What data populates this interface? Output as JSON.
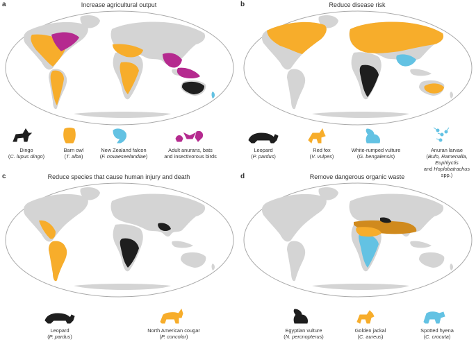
{
  "colors": {
    "land": "#d4d4d4",
    "ocean": "#ffffff",
    "outline": "#a9a9a9",
    "orange": "#f7ad2b",
    "magenta": "#b52a8f",
    "black": "#1e1e1e",
    "blue": "#63c2e3",
    "dark_orange": "#d08a1d"
  },
  "panels": [
    {
      "label": "a",
      "title": "Increase agricultural output",
      "legend": [
        {
          "name": "Dingo",
          "sci_pre": "(",
          "sci": "C. lupus dingo",
          "sci_post": ")",
          "color": "#1e1e1e",
          "icon": "dingo-icon"
        },
        {
          "name": "Barn owl",
          "sci_pre": "(",
          "sci": "T. alba",
          "sci_post": ")",
          "color": "#f7ad2b",
          "icon": "barn-owl-icon"
        },
        {
          "name": "New Zealand falcon",
          "sci_pre": "(",
          "sci": "F. novaeseelandiae",
          "sci_post": ")",
          "color": "#63c2e3",
          "icon": "falcon-icon"
        },
        {
          "name": "Adult anurans, bats",
          "sci_pre": "and insectivorous birds",
          "sci": "",
          "sci_post": "",
          "color": "#b52a8f",
          "icon": "frog-bat-bird-icon"
        }
      ]
    },
    {
      "label": "b",
      "title": "Reduce disease risk",
      "legend": [
        {
          "name": "Leopard",
          "sci_pre": "(",
          "sci": "P. pardus",
          "sci_post": ")",
          "color": "#1e1e1e",
          "icon": "leopard-icon"
        },
        {
          "name": "Red fox",
          "sci_pre": "(",
          "sci": "V. vulpes",
          "sci_post": ")",
          "color": "#f7ad2b",
          "icon": "fox-icon"
        },
        {
          "name": "White-rumped vulture",
          "sci_pre": "(",
          "sci": "G. bengalensis",
          "sci_post": ")",
          "color": "#63c2e3",
          "icon": "vulture-icon"
        },
        {
          "name": "Anuran larvae",
          "sci_pre": "(",
          "sci": "Bufo, Ramenalla, Euphlyctis",
          "sci_post": "",
          "sci2_pre": "and ",
          "sci2": "Hoplobatrachus",
          "sci2_post": " spp.)",
          "color": "#63c2e3",
          "icon": "tadpole-icon"
        }
      ]
    },
    {
      "label": "c",
      "title": "Reduce species that cause human injury and death",
      "legend": [
        {
          "name": "Leopard",
          "sci_pre": "(",
          "sci": "P. pardus",
          "sci_post": ")",
          "color": "#1e1e1e",
          "icon": "leopard-icon"
        },
        {
          "name": "North American cougar",
          "sci_pre": "(",
          "sci": "P. concolor",
          "sci_post": ")",
          "color": "#f7ad2b",
          "icon": "cougar-icon"
        }
      ]
    },
    {
      "label": "d",
      "title": "Remove dangerous organic waste",
      "legend": [
        {
          "name": "Egyptian vulture",
          "sci_pre": "(",
          "sci": "N. percnopterus",
          "sci_post": ")",
          "color": "#1e1e1e",
          "icon": "vulture-icon"
        },
        {
          "name": "Golden jackal",
          "sci_pre": "(",
          "sci": "C. aureus",
          "sci_post": ")",
          "color": "#f7ad2b",
          "icon": "jackal-icon"
        },
        {
          "name": "Spotted hyena",
          "sci_pre": "(",
          "sci": "C. crocuta",
          "sci_post": ")",
          "color": "#63c2e3",
          "icon": "hyena-icon"
        }
      ]
    }
  ]
}
